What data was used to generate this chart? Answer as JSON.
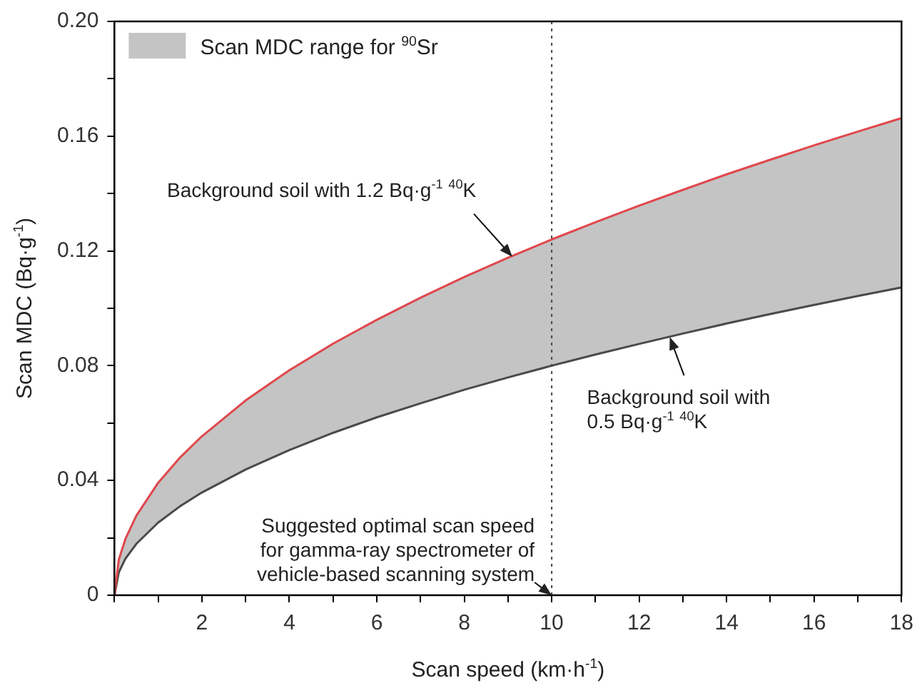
{
  "chart_data": {
    "type": "line",
    "xlabel": "Scan speed (km·h$^{-1}$)",
    "ylabel": "Scan MDC (Bq·g$^{-1}$)",
    "x": [
      0,
      0.1,
      0.25,
      0.5,
      1,
      1.5,
      2,
      3,
      4,
      5,
      6,
      7,
      8,
      9,
      10,
      11,
      12,
      13,
      14,
      15,
      16,
      17,
      18
    ],
    "series": [
      {
        "type": "line",
        "color": "#e0474c",
        "values": [
          0,
          0.0124,
          0.0196,
          0.0277,
          0.0392,
          0.048,
          0.0554,
          0.0679,
          0.0784,
          0.0877,
          0.096,
          0.1037,
          0.1109,
          0.1176,
          0.124,
          0.13,
          0.1358,
          0.1413,
          0.1467,
          0.1518,
          0.1568,
          0.1616,
          0.1663
        ]
      },
      {
        "type": "line",
        "color": "#4a4a4a",
        "values": [
          0,
          0.008,
          0.0127,
          0.0179,
          0.0253,
          0.031,
          0.0358,
          0.0438,
          0.0506,
          0.0566,
          0.062,
          0.0669,
          0.0716,
          0.0759,
          0.08,
          0.0839,
          0.0876,
          0.0912,
          0.0947,
          0.098,
          0.1012,
          0.1043,
          0.1073
        ]
      },
      {
        "name": "Scan MDC range for $^{90}$Sr",
        "type": "area",
        "color": "#c4c4c4",
        "values": [
          null,
          null,
          null,
          null,
          null,
          null,
          null,
          null,
          null,
          null,
          null,
          null,
          null,
          null,
          null,
          null,
          null,
          null,
          null,
          null,
          null,
          null,
          null
        ],
        "upper": [
          0,
          0.0124,
          0.0196,
          0.0277,
          0.0392,
          0.048,
          0.0554,
          0.0679,
          0.0784,
          0.0877,
          0.096,
          0.1037,
          0.1109,
          0.1176,
          0.124,
          0.13,
          0.1358,
          0.1413,
          0.1467,
          0.1518,
          0.1568,
          0.1616,
          0.1663
        ],
        "lower": [
          0,
          0.008,
          0.0127,
          0.0179,
          0.0253,
          0.031,
          0.0358,
          0.0438,
          0.0506,
          0.0566,
          0.062,
          0.0669,
          0.0716,
          0.0759,
          0.08,
          0.0839,
          0.0876,
          0.0912,
          0.0947,
          0.098,
          0.1012,
          0.1043,
          0.1073
        ]
      }
    ],
    "xlim": [
      0,
      18
    ],
    "xticks": [
      {
        "value": 0,
        "label": null
      },
      {
        "value": 1,
        "label": null
      },
      2,
      {
        "value": 3,
        "label": null
      },
      4,
      {
        "value": 5,
        "label": null
      },
      6,
      {
        "value": 7,
        "label": null
      },
      8,
      {
        "value": 9,
        "label": null
      },
      10,
      {
        "value": 11,
        "label": null
      },
      12,
      {
        "value": 13,
        "label": null
      },
      14,
      {
        "value": 15,
        "label": null
      },
      16,
      {
        "value": 17,
        "label": null
      },
      18
    ],
    "ylim": [
      0,
      0.2
    ],
    "yticks": [
      0,
      {
        "value": 0.02,
        "label": null
      },
      0.04,
      {
        "value": 0.06,
        "label": null
      },
      0.08,
      {
        "value": 0.1,
        "label": null
      },
      0.12,
      {
        "value": 0.14,
        "label": null
      },
      0.16,
      {
        "value": 0.18,
        "label": null
      },
      {
        "value": 0.2,
        "label": "0.20"
      }
    ],
    "ref_lines": [
      {
        "axis": "x",
        "value": 10,
        "line_style": "dotted",
        "color": "#444444"
      }
    ],
    "annotations": [
      {
        "text": "Background soil with 1.2 Bq·g$^{-1}$ $^{40}$K",
        "x": 9.1,
        "y": 0.118
      },
      {
        "text": "Background soil with\n0.5 Bq·g$^{-1}$ $^{40}$K",
        "x": 12.7,
        "y": 0.09
      },
      {
        "text": "Suggested optimal scan speed\nfor gamma-ray spectrometer of\nvehicle-based scanning system",
        "x": 10,
        "y": 0
      }
    ],
    "grid": false,
    "legend": "top left",
    "marker": "none",
    "line_style": "solid"
  }
}
